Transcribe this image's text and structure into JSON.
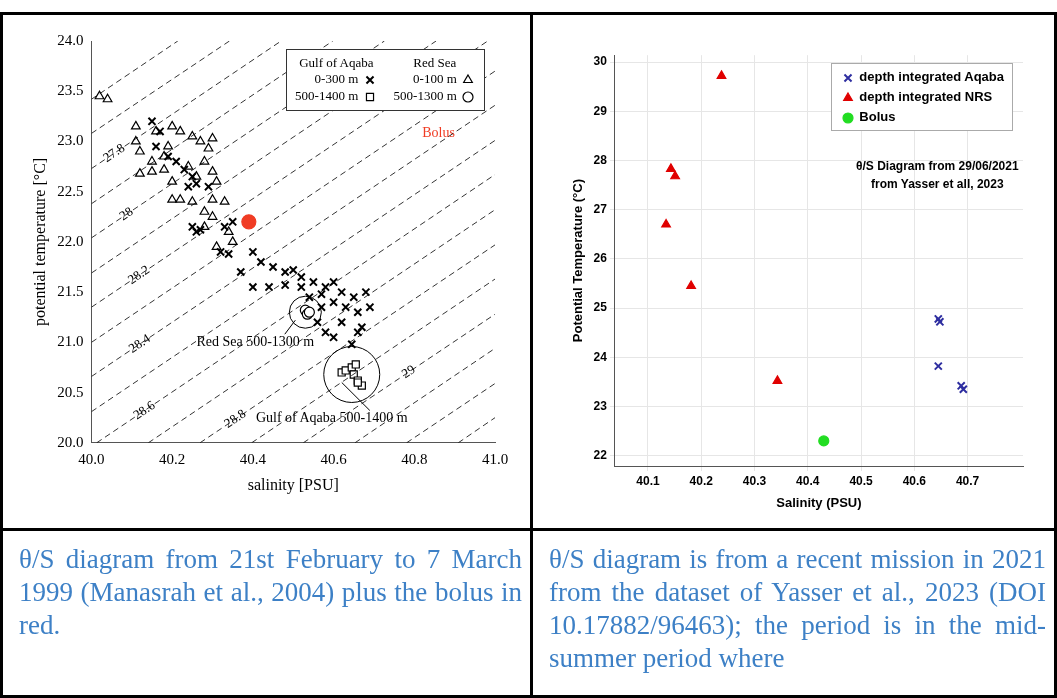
{
  "chart_data": [
    {
      "type": "scatter",
      "xlabel": "salinity [PSU]",
      "ylabel": "potential temperature [°C]",
      "xlim": [
        40,
        41
      ],
      "ylim": [
        20,
        24
      ],
      "xticks": [
        {
          "value": 40,
          "label": "40.0"
        },
        {
          "value": 40.2,
          "label": "40.2"
        },
        {
          "value": 40.4,
          "label": "40.4"
        },
        {
          "value": 40.6,
          "label": "40.6"
        },
        {
          "value": 40.8,
          "label": "40.8"
        },
        {
          "value": 41,
          "label": "41.0"
        }
      ],
      "yticks": [
        {
          "value": 20,
          "label": "20.0"
        },
        {
          "value": 20.5,
          "label": "20.5"
        },
        {
          "value": 21,
          "label": "21.0"
        },
        {
          "value": 21.5,
          "label": "21.5"
        },
        {
          "value": 22,
          "label": "22.0"
        },
        {
          "value": 22.5,
          "label": "22.5"
        },
        {
          "value": 23,
          "label": "23.0"
        },
        {
          "value": 23.5,
          "label": "23.5"
        },
        {
          "value": 24,
          "label": "24.0"
        }
      ],
      "grid": false,
      "legend": "top right",
      "series": [
        {
          "type": "line",
          "color": "#000000",
          "line_style": "dashed",
          "marker": "none",
          "x": [
            40,
            40.214
          ],
          "values": [
            23.42,
            24
          ]
        },
        {
          "type": "line",
          "color": "#000000",
          "line_style": "dashed",
          "marker": "none",
          "x": [
            40,
            40.342
          ],
          "values": [
            23.08,
            24
          ]
        },
        {
          "type": "line",
          "name": "27.8",
          "color": "#000000",
          "line_style": "dashed",
          "marker": "none",
          "x": [
            40,
            40.47
          ],
          "values": [
            22.73,
            24
          ]
        },
        {
          "type": "line",
          "color": "#000000",
          "line_style": "dashed",
          "marker": "none",
          "x": [
            40,
            40.598
          ],
          "values": [
            22.38,
            24
          ]
        },
        {
          "type": "line",
          "name": "28",
          "color": "#000000",
          "line_style": "dashed",
          "marker": "none",
          "x": [
            40,
            40.726
          ],
          "values": [
            22.04,
            24
          ]
        },
        {
          "type": "line",
          "color": "#000000",
          "line_style": "dashed",
          "marker": "none",
          "x": [
            40,
            40.854
          ],
          "values": [
            21.69,
            24
          ]
        },
        {
          "type": "line",
          "name": "28.2",
          "color": "#000000",
          "line_style": "dashed",
          "marker": "none",
          "x": [
            40,
            40.982
          ],
          "values": [
            21.35,
            24
          ]
        },
        {
          "type": "line",
          "color": "#000000",
          "line_style": "dashed",
          "marker": "none",
          "x": [
            40,
            41
          ],
          "values": [
            21,
            23.7
          ]
        },
        {
          "type": "line",
          "name": "28.4",
          "color": "#000000",
          "line_style": "dashed",
          "marker": "none",
          "x": [
            40,
            41
          ],
          "values": [
            20.66,
            23.36
          ]
        },
        {
          "type": "line",
          "color": "#000000",
          "line_style": "dashed",
          "marker": "none",
          "x": [
            40,
            41
          ],
          "values": [
            20.31,
            23.01
          ]
        },
        {
          "type": "line",
          "name": "28.6",
          "color": "#000000",
          "line_style": "dashed",
          "marker": "none",
          "x": [
            40.013,
            41
          ],
          "values": [
            20,
            22.67
          ]
        },
        {
          "type": "line",
          "color": "#000000",
          "line_style": "dashed",
          "marker": "none",
          "x": [
            40.141,
            41
          ],
          "values": [
            20,
            22.32
          ]
        },
        {
          "type": "line",
          "name": "28.8",
          "color": "#000000",
          "line_style": "dashed",
          "marker": "none",
          "x": [
            40.269,
            41
          ],
          "values": [
            20,
            21.97
          ]
        },
        {
          "type": "line",
          "color": "#000000",
          "line_style": "dashed",
          "marker": "none",
          "x": [
            40.397,
            41
          ],
          "values": [
            20,
            21.63
          ]
        },
        {
          "type": "line",
          "name": "29",
          "color": "#000000",
          "line_style": "dashed",
          "marker": "none",
          "x": [
            40.525,
            41
          ],
          "values": [
            20,
            21.28
          ]
        },
        {
          "type": "line",
          "color": "#000000",
          "line_style": "dashed",
          "marker": "none",
          "x": [
            40.653,
            41
          ],
          "values": [
            20,
            20.94
          ]
        },
        {
          "type": "line",
          "color": "#000000",
          "line_style": "dashed",
          "marker": "none",
          "x": [
            40.781,
            41
          ],
          "values": [
            20,
            20.59
          ]
        },
        {
          "type": "line",
          "color": "#000000",
          "line_style": "dashed",
          "marker": "none",
          "x": [
            40.909,
            41
          ],
          "values": [
            20,
            20.25
          ]
        },
        {
          "type": "scatter",
          "name": "0-300 m",
          "color": "#000000",
          "marker": "cross",
          "x": [
            40.15,
            40.17,
            40.16,
            40.19,
            40.21,
            40.23,
            40.25,
            40.24,
            40.26,
            40.29,
            40.25,
            40.26,
            40.27,
            40.32,
            40.33,
            40.35,
            40.34,
            40.37,
            40.4,
            40.42,
            40.45,
            40.48,
            40.5,
            40.52,
            40.4,
            40.44,
            40.48,
            40.52,
            40.55,
            40.58,
            40.6,
            40.62,
            40.65,
            40.68,
            40.69,
            40.66,
            40.63,
            40.6,
            40.57,
            40.56,
            40.58,
            40.6,
            40.62,
            40.66,
            40.67,
            40.645,
            40.54,
            40.57
          ],
          "values": [
            23.2,
            23.1,
            22.95,
            22.85,
            22.8,
            22.72,
            22.65,
            22.55,
            22.58,
            22.55,
            22.15,
            22.1,
            22.12,
            21.9,
            22.15,
            22.2,
            21.88,
            21.7,
            21.9,
            21.8,
            21.75,
            21.7,
            21.72,
            21.65,
            21.55,
            21.55,
            21.57,
            21.55,
            21.6,
            21.55,
            21.6,
            21.5,
            21.45,
            21.5,
            21.35,
            21.3,
            21.35,
            21.4,
            21.35,
            21.2,
            21.1,
            21.05,
            21.2,
            21.1,
            21.15,
            20.98,
            21.45,
            21.48
          ]
        },
        {
          "type": "scatter",
          "name": "500-1400 m",
          "color": "#000000",
          "marker": "square",
          "x": [
            40.62,
            40.63,
            40.645,
            40.65,
            40.66,
            40.67,
            40.66,
            40.655
          ],
          "values": [
            20.7,
            20.72,
            20.75,
            20.68,
            20.62,
            20.57,
            20.6,
            20.78
          ]
        },
        {
          "type": "scatter",
          "name": "0-100 m",
          "color": "#000000",
          "marker": "triangle",
          "x": [
            40.02,
            40.04,
            40.11,
            40.11,
            40.12,
            40.12,
            40.15,
            40.18,
            40.2,
            40.22,
            40.25,
            40.27,
            40.29,
            40.3,
            40.28,
            40.3,
            40.31,
            40.26,
            40.2,
            40.22,
            40.25,
            40.3,
            40.33,
            40.28,
            40.3,
            40.34,
            40.35,
            40.28,
            40.31,
            40.15,
            40.18,
            40.19,
            40.16,
            40.2,
            40.24
          ],
          "values": [
            23.45,
            23.42,
            23.15,
            23,
            22.9,
            22.68,
            22.7,
            22.72,
            23.15,
            23.1,
            23.05,
            23,
            22.93,
            23.03,
            22.8,
            22.7,
            22.6,
            22.65,
            22.42,
            22.42,
            22.4,
            22.42,
            22.4,
            22.3,
            22.25,
            22.1,
            22,
            22.15,
            21.95,
            22.8,
            22.85,
            22.95,
            23.1,
            22.6,
            22.75
          ]
        },
        {
          "type": "scatter",
          "name": "500-1300 m",
          "color": "#000000",
          "marker": "circle",
          "x": [
            40.53,
            40.535,
            40.54
          ],
          "values": [
            21.32,
            21.28,
            21.3
          ]
        },
        {
          "type": "scatter",
          "color": "#f03c24",
          "marker": "circle",
          "x": [
            40.39
          ],
          "values": [
            22.2
          ]
        }
      ],
      "annotations": [
        "Gulf of Aqaba",
        "Red Sea",
        {
          "text": "Red Sea 500-1300 m",
          "x": 40.53,
          "y": 21.3
        },
        {
          "text": "Gulf of Aqaba 500-1400 m",
          "x": 40.645,
          "y": 20.68
        },
        "Bolus",
        "θ/S diagram from 21st February to 7 March 1999 (Manasrah et al., 2004) plus the bolus in red."
      ]
    },
    {
      "type": "scatter",
      "xlabel": "Salinity (PSU)",
      "ylabel": "Potential Temperature (°C)",
      "xlim": [
        40.038,
        40.804
      ],
      "ylim": [
        21.79,
        30.14
      ],
      "xticks": [
        40.1,
        40.2,
        40.3,
        40.4,
        40.5,
        40.6,
        40.7
      ],
      "yticks": [
        22,
        23,
        24,
        25,
        26,
        27,
        28,
        29,
        30
      ],
      "grid": true,
      "legend": "top right",
      "series": [
        {
          "type": "scatter",
          "name": "depth integrated Aqaba",
          "color": "#2e2ea0",
          "marker": "cross",
          "x": [
            40.645,
            40.648,
            40.645,
            40.688,
            40.692
          ],
          "values": [
            24.78,
            24.72,
            23.82,
            23.42,
            23.35
          ]
        },
        {
          "type": "scatter",
          "name": "depth integrated NRS",
          "color": "#e00000",
          "marker": "triangle",
          "x": [
            40.238,
            40.143,
            40.151,
            40.134,
            40.181,
            40.343
          ],
          "values": [
            29.72,
            27.83,
            27.68,
            26.7,
            25.45,
            23.52
          ]
        },
        {
          "type": "scatter",
          "name": "Bolus",
          "color": "#22dd22",
          "marker": "circle",
          "x": [
            40.43
          ],
          "values": [
            22.3
          ]
        }
      ],
      "annotations": [
        "θ/S Diagram from 29/06/2021",
        "from Yasser et all, 2023",
        "θ/S diagram is from a recent mission in 2021 from the dataset of Yasser et al., 2023 (DOI 10.17882/96463); the period is in the mid-summer period where"
      ]
    }
  ]
}
